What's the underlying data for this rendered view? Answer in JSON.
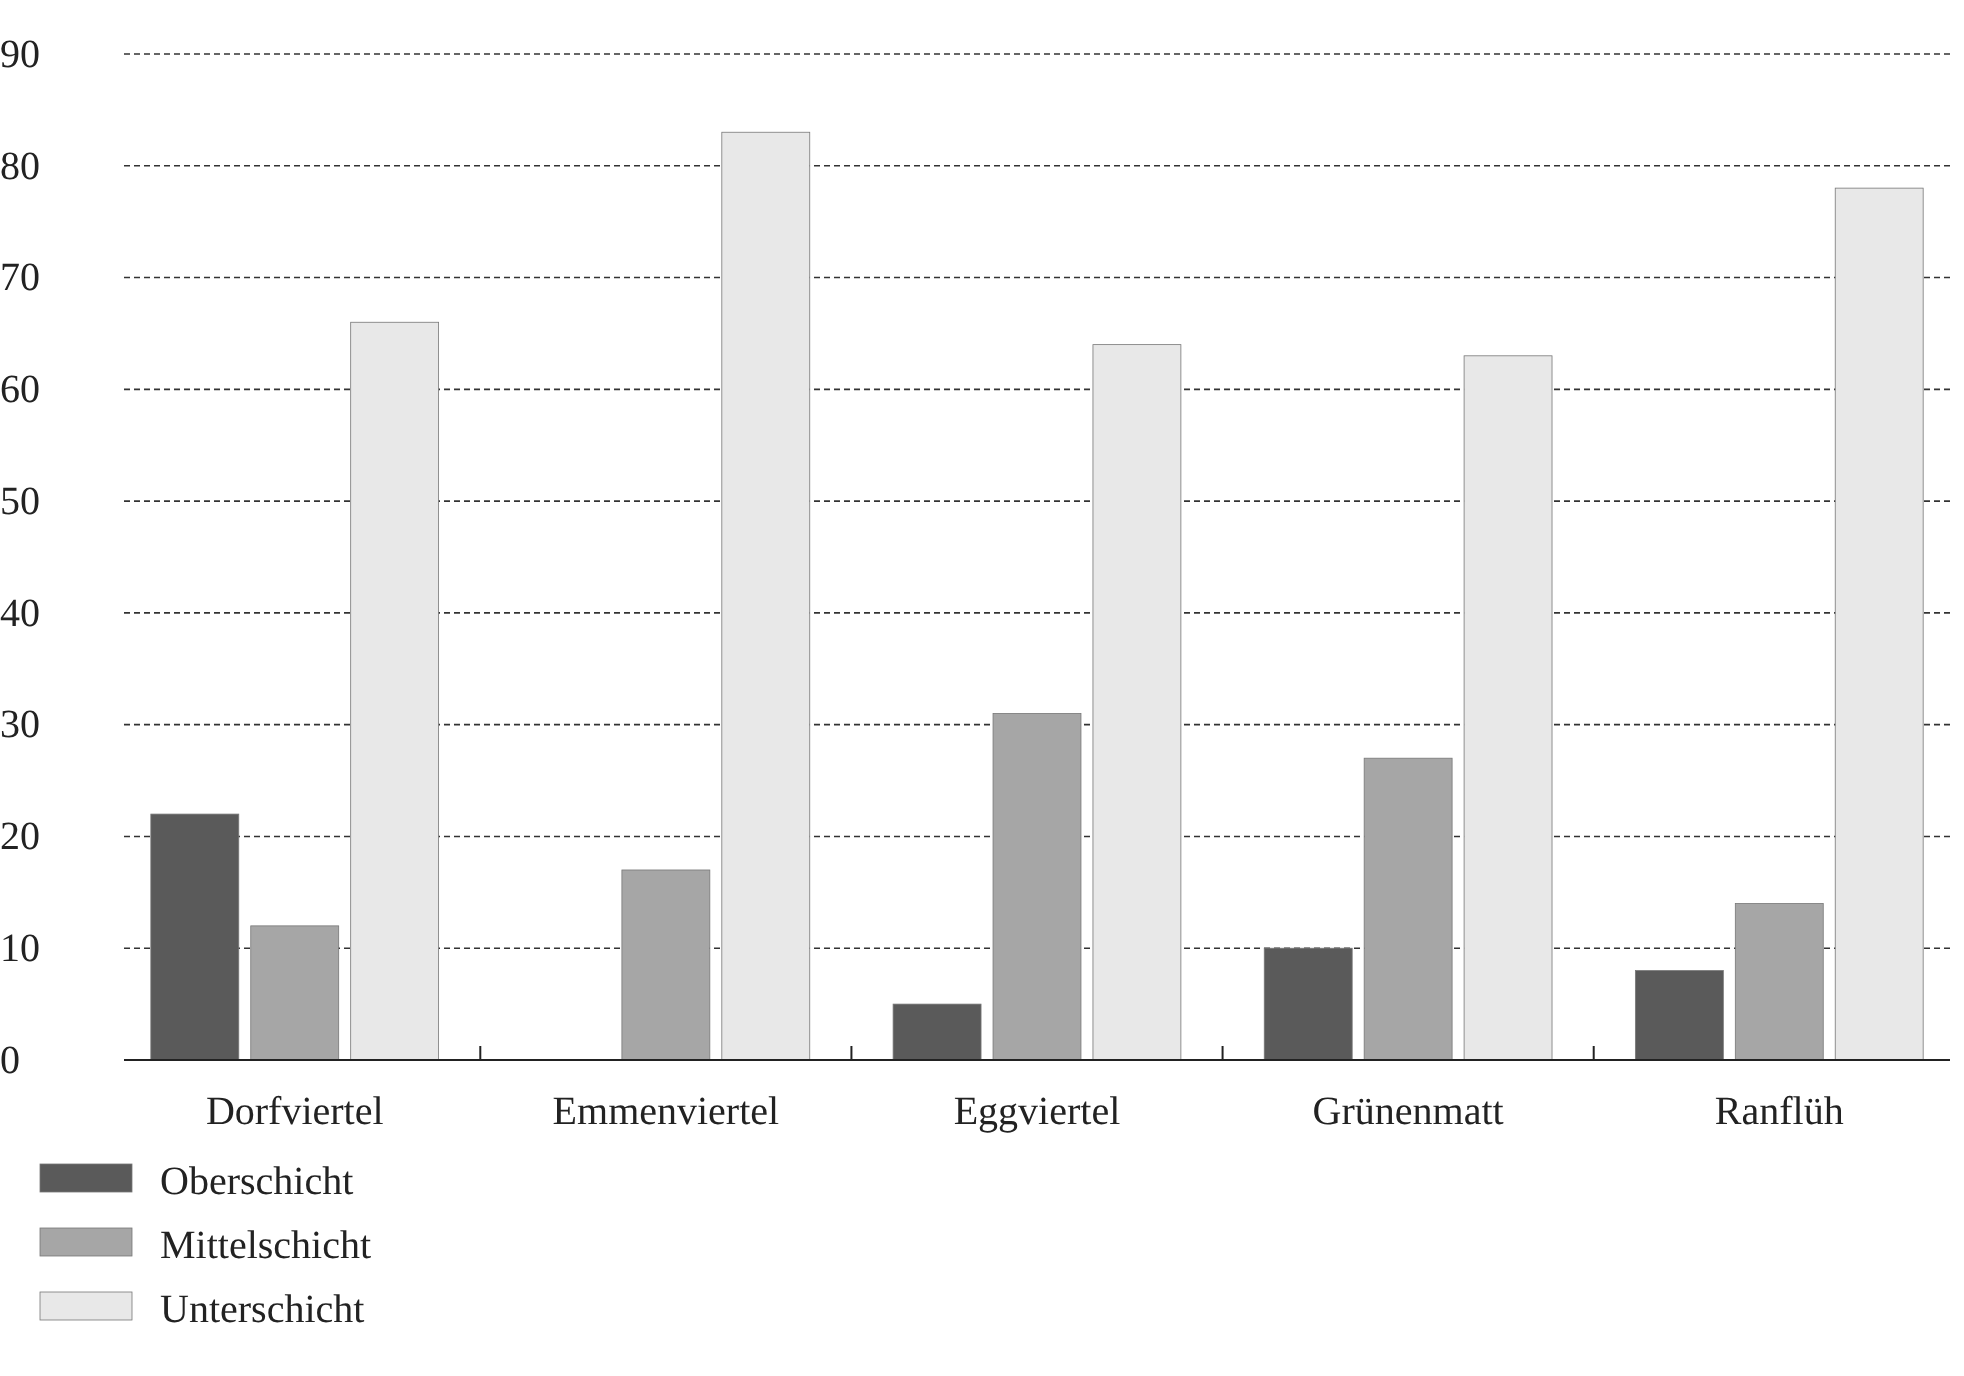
{
  "chart_data": {
    "type": "bar",
    "categories": [
      "Dorfviertel",
      "Emmenviertel",
      "Eggviertel",
      "Grünenmatt",
      "Ranflüh"
    ],
    "series": [
      {
        "name": "Oberschicht",
        "color": "#5a5a5a",
        "values": [
          22,
          0,
          5,
          10,
          8
        ]
      },
      {
        "name": "Mittelschicht",
        "color": "#a6a6a6",
        "values": [
          12,
          17,
          31,
          27,
          14
        ]
      },
      {
        "name": "Unterschicht",
        "color": "#e8e8e8",
        "values": [
          66,
          83,
          64,
          63,
          78
        ]
      }
    ],
    "ylim": [
      0,
      90
    ],
    "yticks": [
      0,
      10,
      20,
      30,
      40,
      50,
      60,
      70,
      80,
      90
    ],
    "grid": "y",
    "legend": "bottom left"
  }
}
